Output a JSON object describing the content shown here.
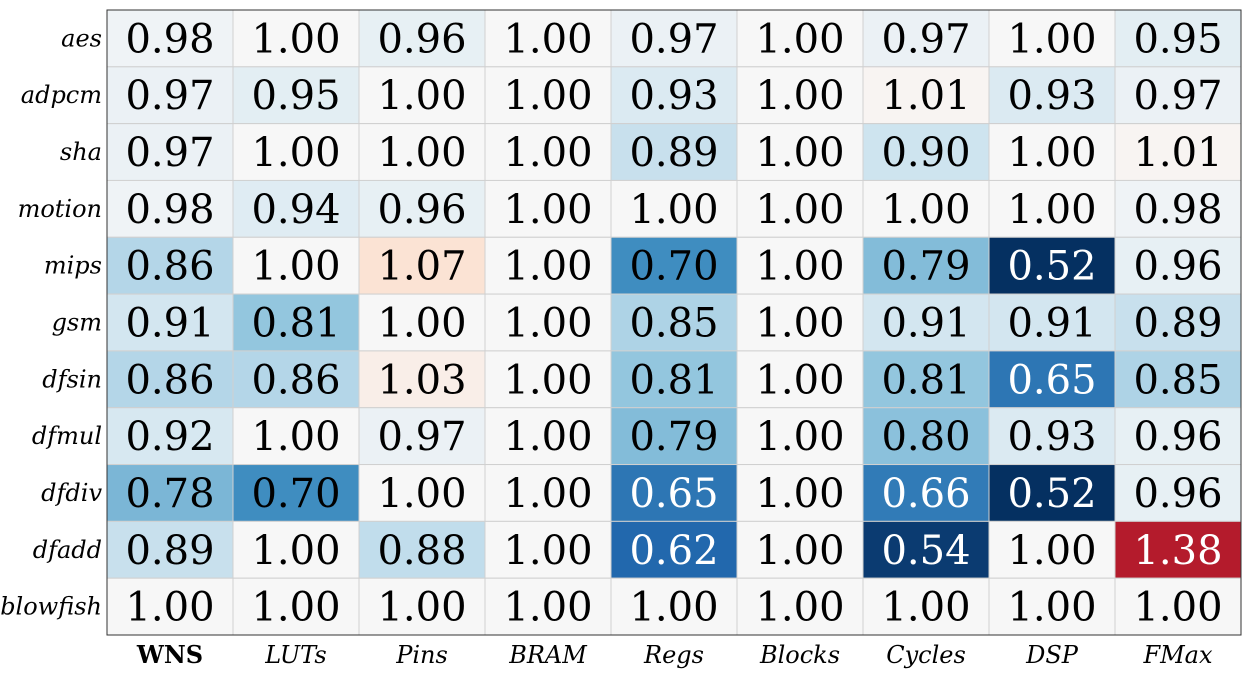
{
  "chart_data": {
    "type": "heatmap",
    "title": "",
    "xlabel": "",
    "ylabel": "",
    "columns": [
      {
        "label": "WNS",
        "bold": true
      },
      {
        "label": "LUTs",
        "bold": false
      },
      {
        "label": "Pins",
        "bold": false
      },
      {
        "label": "BRAM",
        "bold": false
      },
      {
        "label": "Regs",
        "bold": false
      },
      {
        "label": "Blocks",
        "bold": false
      },
      {
        "label": "Cycles",
        "bold": false
      },
      {
        "label": "DSP",
        "bold": false
      },
      {
        "label": "FMax",
        "bold": false
      }
    ],
    "rows": [
      "aes",
      "adpcm",
      "sha",
      "motion",
      "mips",
      "gsm",
      "dfsin",
      "dfmul",
      "dfdiv",
      "dfadd",
      "blowfish"
    ],
    "values": [
      [
        0.98,
        1.0,
        0.96,
        1.0,
        0.97,
        1.0,
        0.97,
        1.0,
        0.95
      ],
      [
        0.97,
        0.95,
        1.0,
        1.0,
        0.93,
        1.0,
        1.01,
        0.93,
        0.97
      ],
      [
        0.97,
        1.0,
        1.0,
        1.0,
        0.89,
        1.0,
        0.9,
        1.0,
        1.01
      ],
      [
        0.98,
        0.94,
        0.96,
        1.0,
        1.0,
        1.0,
        1.0,
        1.0,
        0.98
      ],
      [
        0.86,
        1.0,
        1.07,
        1.0,
        0.7,
        1.0,
        0.79,
        0.52,
        0.96
      ],
      [
        0.91,
        0.81,
        1.0,
        1.0,
        0.85,
        1.0,
        0.91,
        0.91,
        0.89
      ],
      [
        0.86,
        0.86,
        1.03,
        1.0,
        0.81,
        1.0,
        0.81,
        0.65,
        0.85
      ],
      [
        0.92,
        1.0,
        0.97,
        1.0,
        0.79,
        1.0,
        0.8,
        0.93,
        0.96
      ],
      [
        0.78,
        0.7,
        1.0,
        1.0,
        0.65,
        1.0,
        0.66,
        0.52,
        0.96
      ],
      [
        0.89,
        1.0,
        0.88,
        1.0,
        0.62,
        1.0,
        0.54,
        1.0,
        1.38
      ],
      [
        1.0,
        1.0,
        1.0,
        1.0,
        1.0,
        1.0,
        1.0,
        1.0,
        1.0
      ]
    ],
    "colormap": "RdBu_r",
    "color_center": 1.0,
    "color_range": [
      0.52,
      1.48
    ],
    "value_format": "2-decimals",
    "grid": true,
    "legend": "none"
  }
}
